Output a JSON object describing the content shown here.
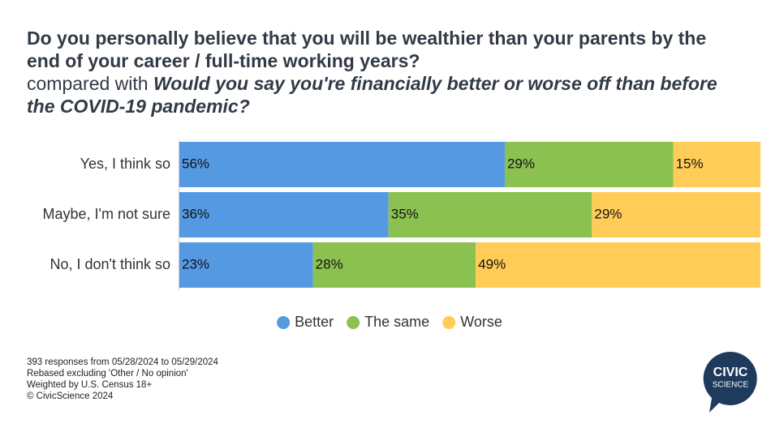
{
  "chart_data": {
    "type": "stacked-bar-horizontal",
    "title": "Do you personally believe that you will be wealthier than your parents by the end of your career / full-time working years?",
    "comparison_prefix": "compared with",
    "comparison_question": "Would you say you're financially better or worse off than before the COVID-19 pandemic?",
    "categories": [
      "Yes, I think so",
      "Maybe, I'm not sure",
      "No, I don't think so"
    ],
    "xlim": [
      0,
      100
    ],
    "series": [
      {
        "name": "Better",
        "color": "#5599e3",
        "values": [
          56,
          36,
          23
        ],
        "value_labels": [
          "56%",
          "36%",
          "23%"
        ]
      },
      {
        "name": "The same",
        "color": "#8bc150",
        "values": [
          29,
          35,
          28
        ],
        "value_labels": [
          "29%",
          "35%",
          "28%"
        ]
      },
      {
        "name": "Worse",
        "color": "#ffcd57",
        "values": [
          15,
          29,
          49
        ],
        "value_labels": [
          "15%",
          "29%",
          "49%"
        ]
      }
    ],
    "legend": "bottom",
    "footnotes": [
      "393 responses from 05/28/2024 to 05/29/2024",
      "Rebased excluding 'Other / No opinion'",
      "Weighted by U.S. Census 18+",
      "© CivicScience 2024"
    ],
    "logo": [
      "CIVIC",
      "SCIENCE"
    ]
  }
}
